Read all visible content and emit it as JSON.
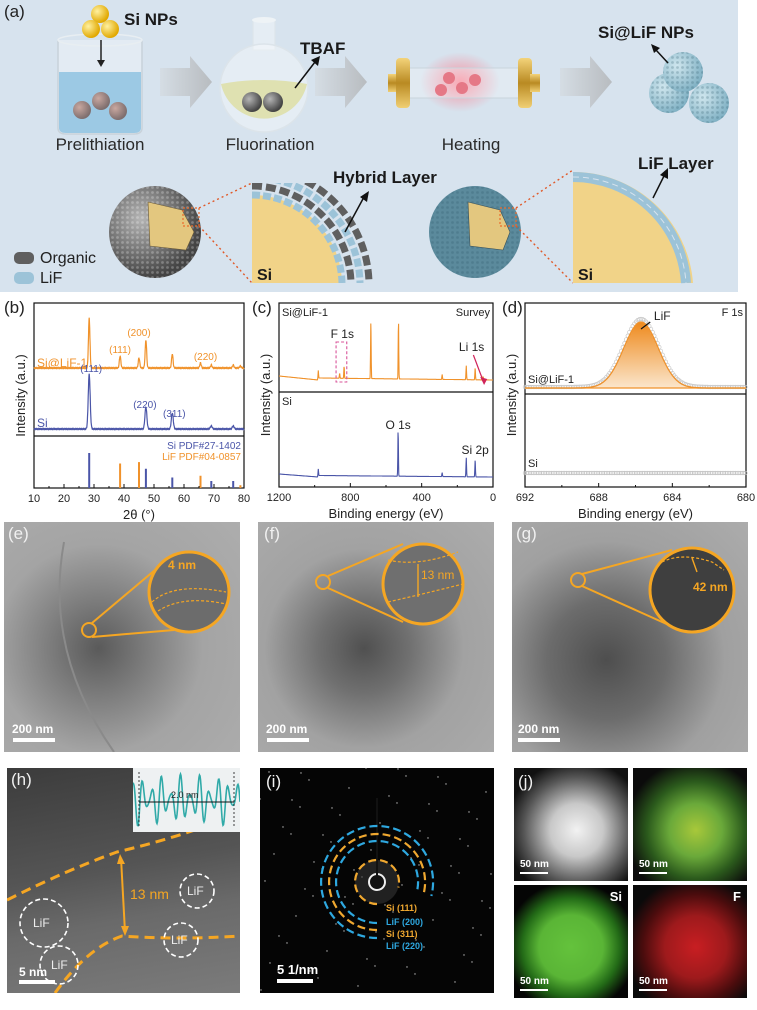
{
  "figure": {
    "panels": {
      "a": {
        "label": "(a)",
        "steps": [
          "Prelithiation",
          "Fluorination",
          "Heating"
        ],
        "callouts": {
          "si_nps": "Si NPs",
          "tbaf": "TBAF",
          "product": "Si@LiF NPs",
          "hybrid_layer": "Hybrid Layer",
          "lif_layer": "LiF Layer",
          "si_core_left": "Si",
          "si_core_right": "Si"
        },
        "legend": [
          {
            "label": "Organic",
            "color": "#5f5f5f"
          },
          {
            "label": "LiF",
            "color": "#9cc3d8"
          }
        ]
      },
      "b": {
        "label": "(b)"
      },
      "c": {
        "label": "(c)"
      },
      "d": {
        "label": "(d)"
      },
      "e": {
        "label": "(e)",
        "annotation": "4 nm",
        "scale": "200 nm"
      },
      "f": {
        "label": "(f)",
        "annotation": "13 nm",
        "scale": "200 nm"
      },
      "g": {
        "label": "(g)",
        "annotation": "42 nm",
        "scale": "200 nm"
      },
      "h": {
        "label": "(h)",
        "annotation": "13 nm",
        "inset_label": "2.0 nm",
        "regions": [
          "LiF",
          "LiF",
          "LiF",
          "LiF"
        ],
        "scale": "5 nm"
      },
      "i": {
        "label": "(i)",
        "rings": [
          {
            "label": "Si (111)",
            "color": "#f0a830"
          },
          {
            "label": "LiF (200)",
            "color": "#2ea8e0"
          },
          {
            "label": "Si (311)",
            "color": "#f0a830"
          },
          {
            "label": "LiF (220)",
            "color": "#2ea8e0"
          }
        ],
        "scale": "5 1/nm"
      },
      "j": {
        "label": "(j)",
        "maps": [
          {
            "title": "",
            "scale": "50 nm"
          },
          {
            "title": "",
            "scale": "50 nm"
          },
          {
            "title": "Si",
            "scale": "50 nm"
          },
          {
            "title": "F",
            "scale": "50 nm"
          }
        ]
      }
    }
  },
  "chart_data": [
    {
      "type": "line",
      "panel": "b",
      "title": "",
      "xlabel": "2θ (°)",
      "ylabel": "Intensity (a.u.)",
      "xlim": [
        10,
        80
      ],
      "xticks": [
        10,
        20,
        30,
        40,
        50,
        60,
        70,
        80
      ],
      "series": [
        {
          "name": "Si@LiF-1",
          "color": "#f0922b",
          "peaks": [
            28.4,
            38.7,
            45.0,
            47.3,
            56.1,
            65.5,
            69.1,
            76.4,
            78.8
          ],
          "annotations": [
            {
              "text": "(111)",
              "x": 38.7
            },
            {
              "text": "(200)",
              "x": 45.0
            },
            {
              "text": "(220)",
              "x": 65.5
            }
          ]
        },
        {
          "name": "Si",
          "color": "#4a55a8",
          "peaks": [
            28.4,
            47.3,
            56.1,
            69.1,
            76.4
          ],
          "annotations": [
            {
              "text": "(111)",
              "x": 28.4
            },
            {
              "text": "(220)",
              "x": 47.3
            },
            {
              "text": "(311)",
              "x": 56.1
            }
          ]
        }
      ],
      "reference": [
        {
          "name": "Si PDF#27-1402",
          "color": "#4a55a8",
          "x": [
            28.4,
            47.3,
            56.1,
            69.1,
            76.4
          ],
          "rel_intensity": [
            1.0,
            0.55,
            0.3,
            0.2,
            0.2
          ]
        },
        {
          "name": "LiF PDF#04-0857",
          "color": "#f0922b",
          "x": [
            38.7,
            45.0,
            65.5,
            78.8
          ],
          "rel_intensity": [
            0.7,
            0.74,
            0.35,
            0.08
          ]
        }
      ]
    },
    {
      "type": "line",
      "panel": "c",
      "title": "Survey",
      "xlabel": "Binding energy (eV)",
      "ylabel": "Intensity (a.u.)",
      "xlim": [
        1200,
        0
      ],
      "xticks": [
        1200,
        800,
        400,
        0
      ],
      "series": [
        {
          "name": "Si@LiF-1",
          "color": "#f0922b",
          "peaks": [
            980,
            860,
            835,
            685,
            530,
            285,
            150,
            100,
            55
          ]
        },
        {
          "name": "Si",
          "color": "#4a55a8",
          "peaks": [
            980,
            532,
            285,
            150,
            100
          ]
        }
      ],
      "annotations": [
        {
          "text": "F 1s",
          "x": 845,
          "series": "Si@LiF-1",
          "boxed": true
        },
        {
          "text": "Li 1s",
          "x": 55,
          "series": "Si@LiF-1"
        },
        {
          "text": "O 1s",
          "x": 532,
          "series": "Si"
        },
        {
          "text": "Si 2p",
          "x": 100,
          "series": "Si"
        }
      ]
    },
    {
      "type": "area",
      "panel": "d",
      "title": "F 1s",
      "xlabel": "Binding energy (eV)",
      "ylabel": "Intensity (a.u.)",
      "xlim": [
        692,
        680
      ],
      "xticks": [
        692,
        688,
        684,
        680
      ],
      "series": [
        {
          "name": "Si@LiF-1",
          "color": "#f0922b",
          "fit_peak_center": 685.7,
          "fit_fwhm": 2.2,
          "component": "LiF"
        },
        {
          "name": "Si",
          "color": "#bbbbbb",
          "flat": true
        }
      ],
      "annotations": [
        {
          "text": "LiF",
          "x": 685.7
        }
      ]
    }
  ]
}
